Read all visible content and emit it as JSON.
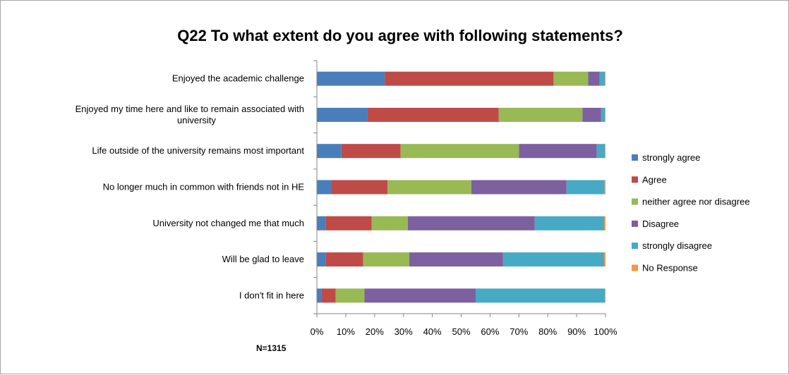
{
  "chart_data": {
    "type": "bar",
    "orientation": "horizontal-stacked-100",
    "title": "Q22 To what extent do you agree with following statements?",
    "note": "N=1315",
    "categories": [
      [
        "Enjoyed the academic challenge"
      ],
      [
        "Enjoyed my time here and like to remain associated with",
        "university"
      ],
      [
        "Life outside of the university remains most important"
      ],
      [
        "No longer much in common with friends not in HE"
      ],
      [
        "University not changed me that much"
      ],
      [
        "Will be glad to leave"
      ],
      [
        "I don't fit in here"
      ]
    ],
    "series": [
      {
        "name": "strongly agree",
        "color": "#4a7ebb",
        "values": [
          23.5,
          17.5,
          8.5,
          5,
          3,
          3,
          1.5
        ]
      },
      {
        "name": "Agree",
        "color": "#be4b48",
        "values": [
          58.5,
          45.5,
          20.5,
          19.5,
          16,
          13,
          5
        ]
      },
      {
        "name": "neither agree nor disagree",
        "color": "#98b954",
        "values": [
          12,
          29,
          41,
          29,
          12.5,
          16,
          10
        ]
      },
      {
        "name": "Disagree",
        "color": "#7d60a0",
        "values": [
          4,
          6.5,
          27,
          33,
          44,
          32.5,
          38.5
        ]
      },
      {
        "name": "strongly disagree",
        "color": "#46aac5",
        "values": [
          1.8,
          1.3,
          2.8,
          13.2,
          24,
          35,
          44.8
        ]
      },
      {
        "name": "No Response",
        "color": "#f79646",
        "values": [
          0.2,
          0.2,
          0.2,
          0.3,
          0.5,
          0.5,
          0.2
        ]
      }
    ],
    "xticks": [
      "0%",
      "10%",
      "20%",
      "30%",
      "40%",
      "50%",
      "60%",
      "70%",
      "80%",
      "90%",
      "100%"
    ],
    "xlim": [
      0,
      100
    ],
    "legend_position": "right",
    "grid": false
  }
}
